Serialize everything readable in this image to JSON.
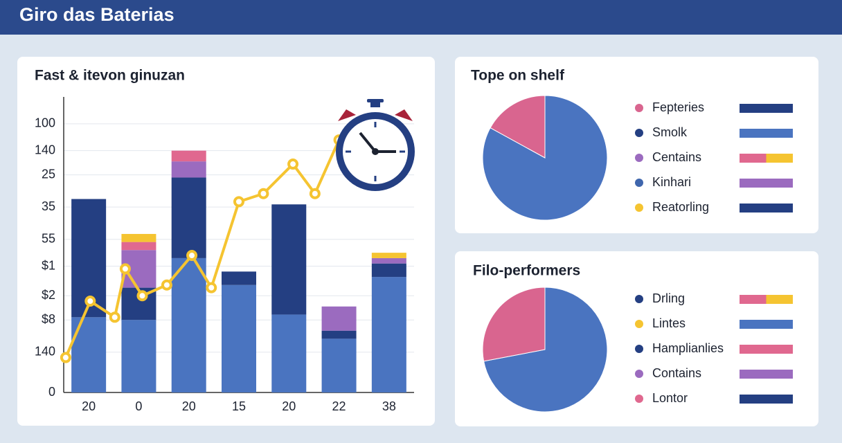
{
  "header": {
    "title": "Giro das Baterias"
  },
  "chart_data": [
    {
      "type": "bar",
      "title": "Fast & itevon ɡinuzan",
      "categories": [
        "20",
        "0",
        "20",
        "15",
        "20",
        "22",
        "38"
      ],
      "series": [
        {
          "color": "#4a74c0",
          "values": [
            28,
            27,
            50,
            40,
            29,
            20,
            43
          ]
        },
        {
          "color": "#243f82",
          "values": [
            44,
            12,
            30,
            5,
            41,
            3,
            5
          ]
        },
        {
          "color": "#9b6bbf",
          "values": [
            0,
            14,
            6,
            0,
            0,
            9,
            2
          ]
        },
        {
          "color": "#e0688f",
          "values": [
            0,
            3,
            4,
            0,
            0,
            0,
            0
          ]
        },
        {
          "color": "#f5c431",
          "values": [
            0,
            3,
            0,
            0,
            0,
            0,
            2
          ]
        }
      ],
      "line": {
        "type": "line",
        "color": "#f5c431",
        "x": [
          -0.46,
          0.03,
          0.52,
          0.73,
          1.07,
          1.56,
          2.06,
          2.45,
          3.0,
          3.49,
          4.08,
          4.52,
          5.0
        ],
        "values": [
          13,
          34,
          28,
          46,
          36,
          40,
          51,
          39,
          71,
          74,
          85,
          74,
          94
        ]
      },
      "xlim": [
        -0.5,
        6.5
      ],
      "ylim": [
        0,
        110
      ],
      "yticks": [
        0,
        {
          "value": 15,
          "label": "140"
        },
        {
          "value": 27,
          "label": "$8"
        },
        {
          "value": 36,
          "label": "$2"
        },
        {
          "value": 47,
          "label": "$1"
        },
        {
          "value": 57,
          "label": "55"
        },
        {
          "value": 69,
          "label": "35"
        },
        {
          "value": 81,
          "label": "25"
        },
        {
          "value": 90,
          "label": "140"
        },
        100
      ],
      "grid": true
    },
    {
      "type": "pie",
      "title": "Tope on shelf",
      "values": [
        83,
        17
      ],
      "colors": [
        "#4a74c0",
        "#d9658f"
      ],
      "legend": [
        {
          "label": "Fepteries",
          "dot": "#d9658f",
          "swatch": [
            "#243f82"
          ]
        },
        {
          "label": "Smolk",
          "dot": "#243f82",
          "swatch": [
            "#4a74c0"
          ]
        },
        {
          "label": "Centains",
          "dot": "#9b6bbf",
          "swatch": [
            "#e0688f",
            "#f5c431"
          ]
        },
        {
          "label": "Kinhari",
          "dot": "#3f66ad",
          "swatch": [
            "#9b6bbf"
          ]
        },
        {
          "label": "Reatorling",
          "dot": "#f5c431",
          "swatch": [
            "#243f82"
          ]
        }
      ]
    },
    {
      "type": "pie",
      "title": "Filo-performers",
      "values": [
        72,
        28
      ],
      "colors": [
        "#4a74c0",
        "#d9658f"
      ],
      "legend": [
        {
          "label": "Drling",
          "dot": "#243f82",
          "swatch": [
            "#e0688f",
            "#f5c431"
          ]
        },
        {
          "label": "Lintes",
          "dot": "#f5c431",
          "swatch": [
            "#4a74c0"
          ]
        },
        {
          "label": "Hamplianlies",
          "dot": "#243f82",
          "swatch": [
            "#e0688f"
          ]
        },
        {
          "label": "Contains",
          "dot": "#9b6bbf",
          "swatch": [
            "#9b6bbf"
          ]
        },
        {
          "label": "Lontor",
          "dot": "#e0688f",
          "swatch": [
            "#243f82"
          ]
        }
      ]
    }
  ]
}
